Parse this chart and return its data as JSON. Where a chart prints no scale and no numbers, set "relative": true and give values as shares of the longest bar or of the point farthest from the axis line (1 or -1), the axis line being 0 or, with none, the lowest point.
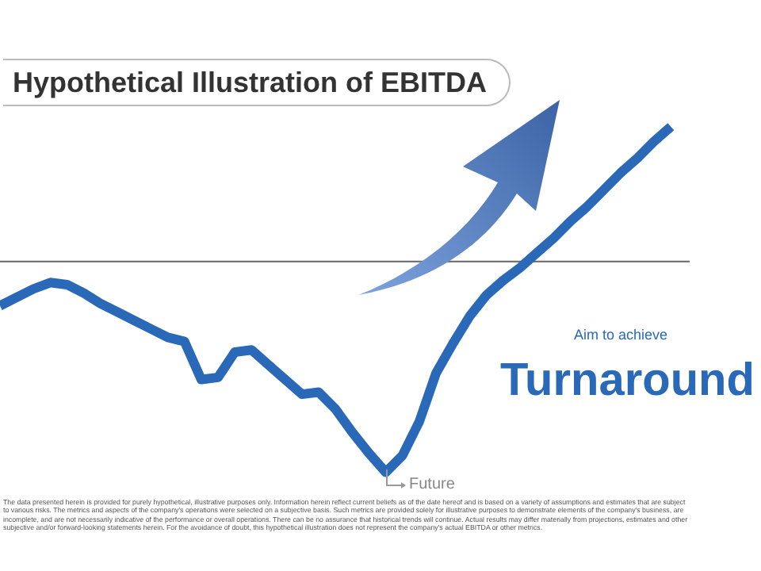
{
  "chart_data": {
    "type": "line",
    "title": "Hypothetical Illustration of EBITDA",
    "relative": true,
    "categories": [
      null,
      null,
      null,
      null,
      null,
      null,
      null,
      null,
      null,
      null,
      null,
      null,
      null,
      null,
      null,
      null,
      null,
      null,
      null,
      null,
      null,
      null,
      null,
      null,
      null,
      null,
      null,
      null,
      null,
      null,
      null,
      null,
      null,
      null,
      null,
      null,
      null,
      null,
      null,
      null,
      null
    ],
    "series": [
      {
        "color": "#2a69b8",
        "values": [
          -0.21,
          -0.17,
          -0.13,
          -0.1,
          -0.11,
          -0.15,
          -0.2,
          -0.24,
          -0.28,
          -0.32,
          -0.36,
          -0.38,
          -0.56,
          -0.55,
          -0.43,
          -0.42,
          -0.49,
          -0.56,
          -0.63,
          -0.62,
          -0.7,
          -0.81,
          -0.91,
          -1,
          -0.92,
          -0.76,
          -0.53,
          -0.39,
          -0.26,
          -0.16,
          -0.09,
          -0.03,
          0.04,
          0.11,
          0.19,
          0.26,
          0.34,
          0.42,
          0.49,
          0.57,
          0.64
        ]
      }
    ],
    "annotations": [
      "Aim to achieve",
      "Turnaround",
      "Future",
      "The data presented herein is provided for purely hypothetical, illustrative purposes only. Information herein reflect current beliefs as of the date hereof and is based on a variety of assumptions and estimates that are subject to various risks. The metrics and aspects of the company's operations were selected on a subjective basis. Such metrics are provided solely for illustrative purposes to demonstrate elements of the company's business, are incomplete, and are not necessarily indicative of the performance or overall operations. There can be no assurance that historical trends will continue. Actual results may differ materially from projections, estimates and other subjective and/or forward-looking statements herein. For the avoidance of doubt, this hypothetical illustration does not represent the company's actual EBITDA or other metrics."
    ],
    "legend": false,
    "marker": "none",
    "line_style": "solid"
  }
}
